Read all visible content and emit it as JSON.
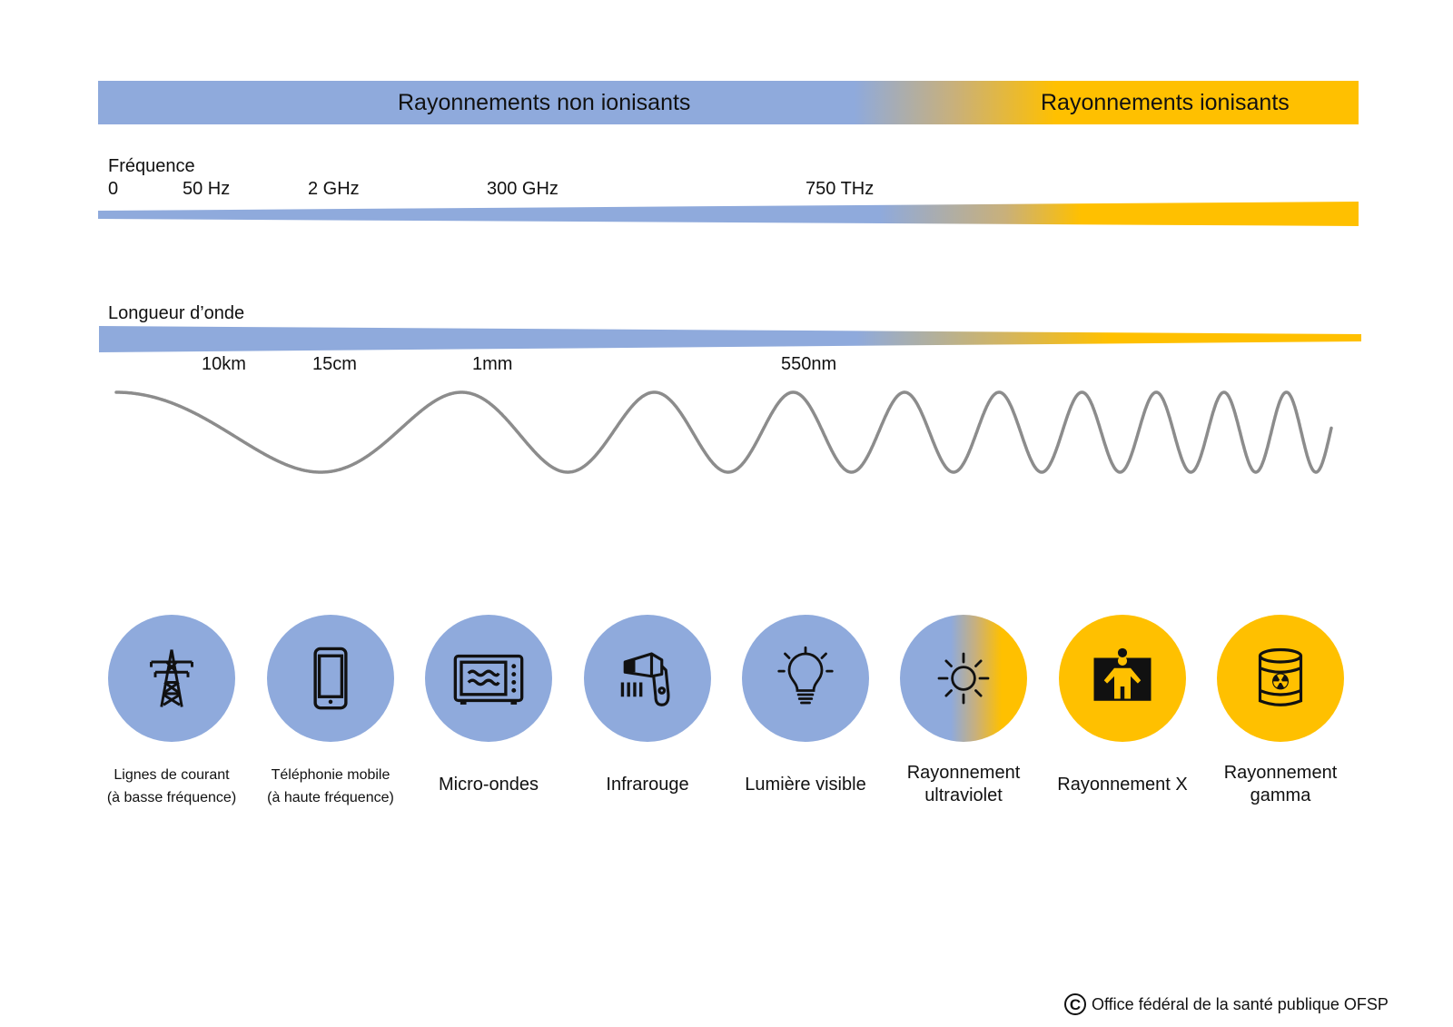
{
  "banner": {
    "non_ionizing": "Rayonnements non ionisants",
    "ionizing": "Rayonnements ionisants"
  },
  "frequency": {
    "title": "Fréquence",
    "ticks": [
      "0",
      "50 Hz",
      "2 GHz",
      "300 GHz",
      "750 THz"
    ]
  },
  "wavelength": {
    "title": "Longueur d’onde",
    "ticks": [
      "10km",
      "15cm",
      "1mm",
      "550nm"
    ]
  },
  "categories": [
    {
      "label_line1": "Lignes de courant",
      "label_line2": "(à basse fréquence)",
      "icon": "power-pylon-icon",
      "color": "blue"
    },
    {
      "label_line1": "Téléphonie mobile",
      "label_line2": "(à haute fréquence)",
      "icon": "mobile-phone-icon",
      "color": "blue"
    },
    {
      "label_line1": "Micro-ondes",
      "label_line2": "",
      "icon": "microwave-icon",
      "color": "blue"
    },
    {
      "label_line1": "Infrarouge",
      "label_line2": "",
      "icon": "hair-dryer-icon",
      "color": "blue"
    },
    {
      "label_line1": "Lumière visible",
      "label_line2": "",
      "icon": "light-bulb-icon",
      "color": "blue"
    },
    {
      "label_line1": "Rayonnement",
      "label_line2": "ultraviolet",
      "icon": "sun-icon",
      "color": "gradient"
    },
    {
      "label_line1": "Rayonnement X",
      "label_line2": "",
      "icon": "x-ray-person-icon",
      "color": "yellow"
    },
    {
      "label_line1": "Rayonnement",
      "label_line2": "gamma",
      "icon": "radioactive-barrel-icon",
      "color": "yellow"
    }
  ],
  "colors": {
    "non_ionizing": "#8faadc",
    "ionizing": "#ffc000",
    "wave": "#8c8c8c"
  },
  "footer": {
    "copyright_symbol": "C",
    "text": "Office fédéral de la santé publique OFSP"
  }
}
